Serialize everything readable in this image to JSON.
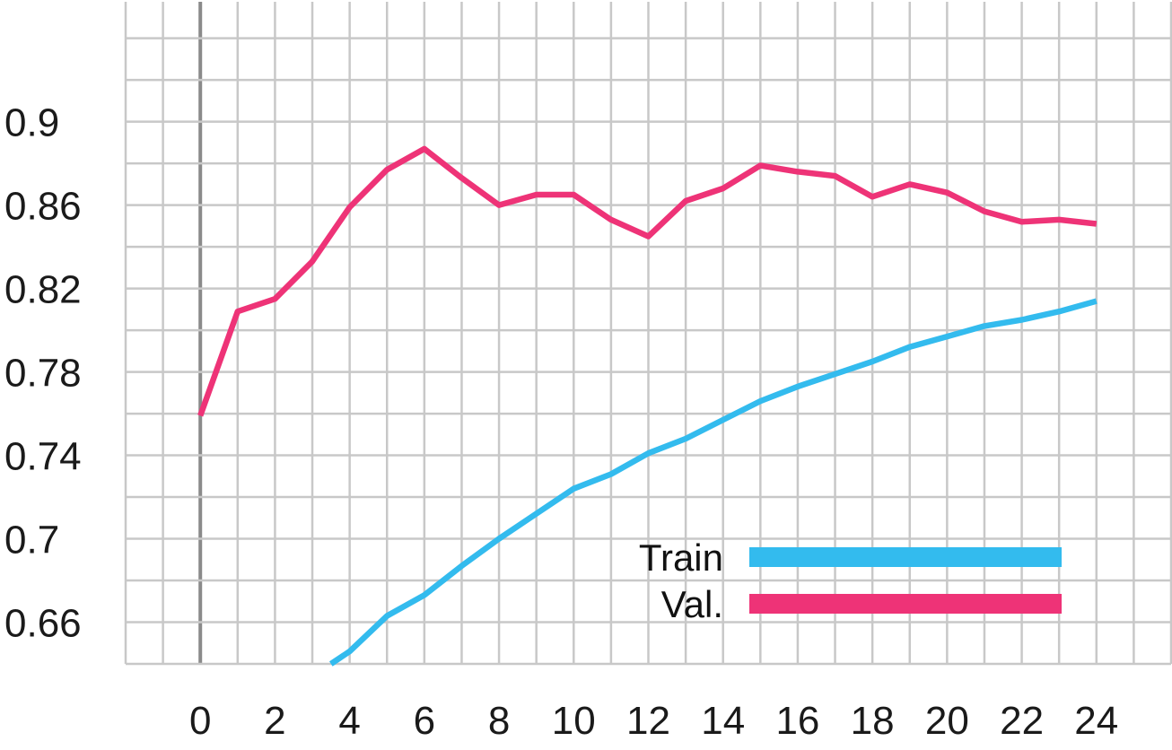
{
  "chart_data": {
    "type": "line",
    "title": "",
    "xlabel": "",
    "ylabel": "",
    "xlim": [
      -2,
      26
    ],
    "ylim": [
      0.64,
      0.9575
    ],
    "x_ticks": [
      0,
      2,
      4,
      6,
      8,
      10,
      12,
      14,
      16,
      18,
      20,
      22,
      24
    ],
    "y_ticks": [
      0.66,
      0.7,
      0.74,
      0.78,
      0.82,
      0.86,
      0.9
    ],
    "y_tick_labels": [
      "0.66",
      "0.7",
      "0.74",
      "0.78",
      "0.82",
      "0.86",
      "0.9"
    ],
    "grid": true,
    "legend_position": "bottom-right",
    "series": [
      {
        "name": "Train",
        "color": "#33bbee",
        "x": [
          3.5,
          4,
          5,
          6,
          7,
          8,
          9,
          10,
          11,
          12,
          13,
          14,
          15,
          16,
          17,
          18,
          19,
          20,
          21,
          22,
          23,
          24
        ],
        "values": [
          0.64,
          0.646,
          0.663,
          0.673,
          0.687,
          0.7,
          0.712,
          0.724,
          0.731,
          0.741,
          0.748,
          0.757,
          0.766,
          0.773,
          0.779,
          0.785,
          0.792,
          0.797,
          0.802,
          0.805,
          0.809,
          0.814
        ]
      },
      {
        "name": "Val.",
        "color": "#ee3377",
        "x": [
          0,
          1,
          2,
          3,
          4,
          5,
          6,
          7,
          8,
          9,
          10,
          11,
          12,
          13,
          14,
          15,
          16,
          17,
          18,
          19,
          20,
          21,
          22,
          23,
          24
        ],
        "values": [
          0.759,
          0.809,
          0.815,
          0.833,
          0.859,
          0.877,
          0.887,
          0.873,
          0.86,
          0.865,
          0.865,
          0.853,
          0.845,
          0.862,
          0.868,
          0.879,
          0.876,
          0.874,
          0.864,
          0.87,
          0.866,
          0.857,
          0.852,
          0.853,
          0.851
        ]
      }
    ]
  }
}
